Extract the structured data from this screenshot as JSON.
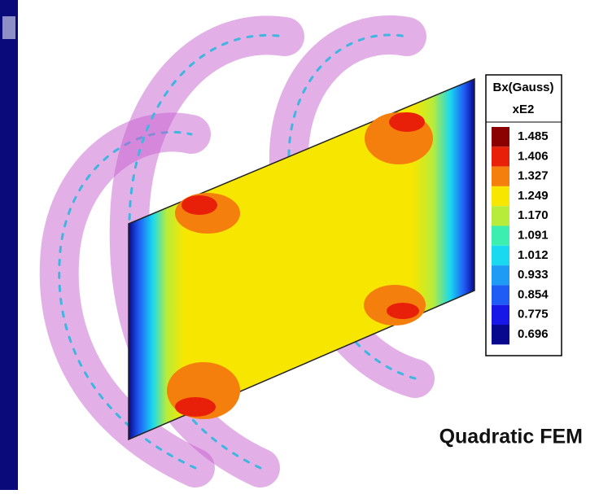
{
  "legend": {
    "title": "Bx(Gauss)",
    "unit": "xE2",
    "levels": [
      {
        "label": "1.485",
        "color": "#8b0000"
      },
      {
        "label": "1.406",
        "color": "#e8200a"
      },
      {
        "label": "1.327",
        "color": "#f57f0c"
      },
      {
        "label": "1.249",
        "color": "#f7e600"
      },
      {
        "label": "1.170",
        "color": "#b8ec3a"
      },
      {
        "label": "1.091",
        "color": "#3cefb0"
      },
      {
        "label": "1.012",
        "color": "#19d9f0"
      },
      {
        "label": "0.933",
        "color": "#1e9cf5"
      },
      {
        "label": "0.854",
        "color": "#1f5cf5"
      },
      {
        "label": "0.775",
        "color": "#1717e8"
      },
      {
        "label": "0.696",
        "color": "#08088f"
      }
    ]
  },
  "caption": "Quadratic FEM"
}
